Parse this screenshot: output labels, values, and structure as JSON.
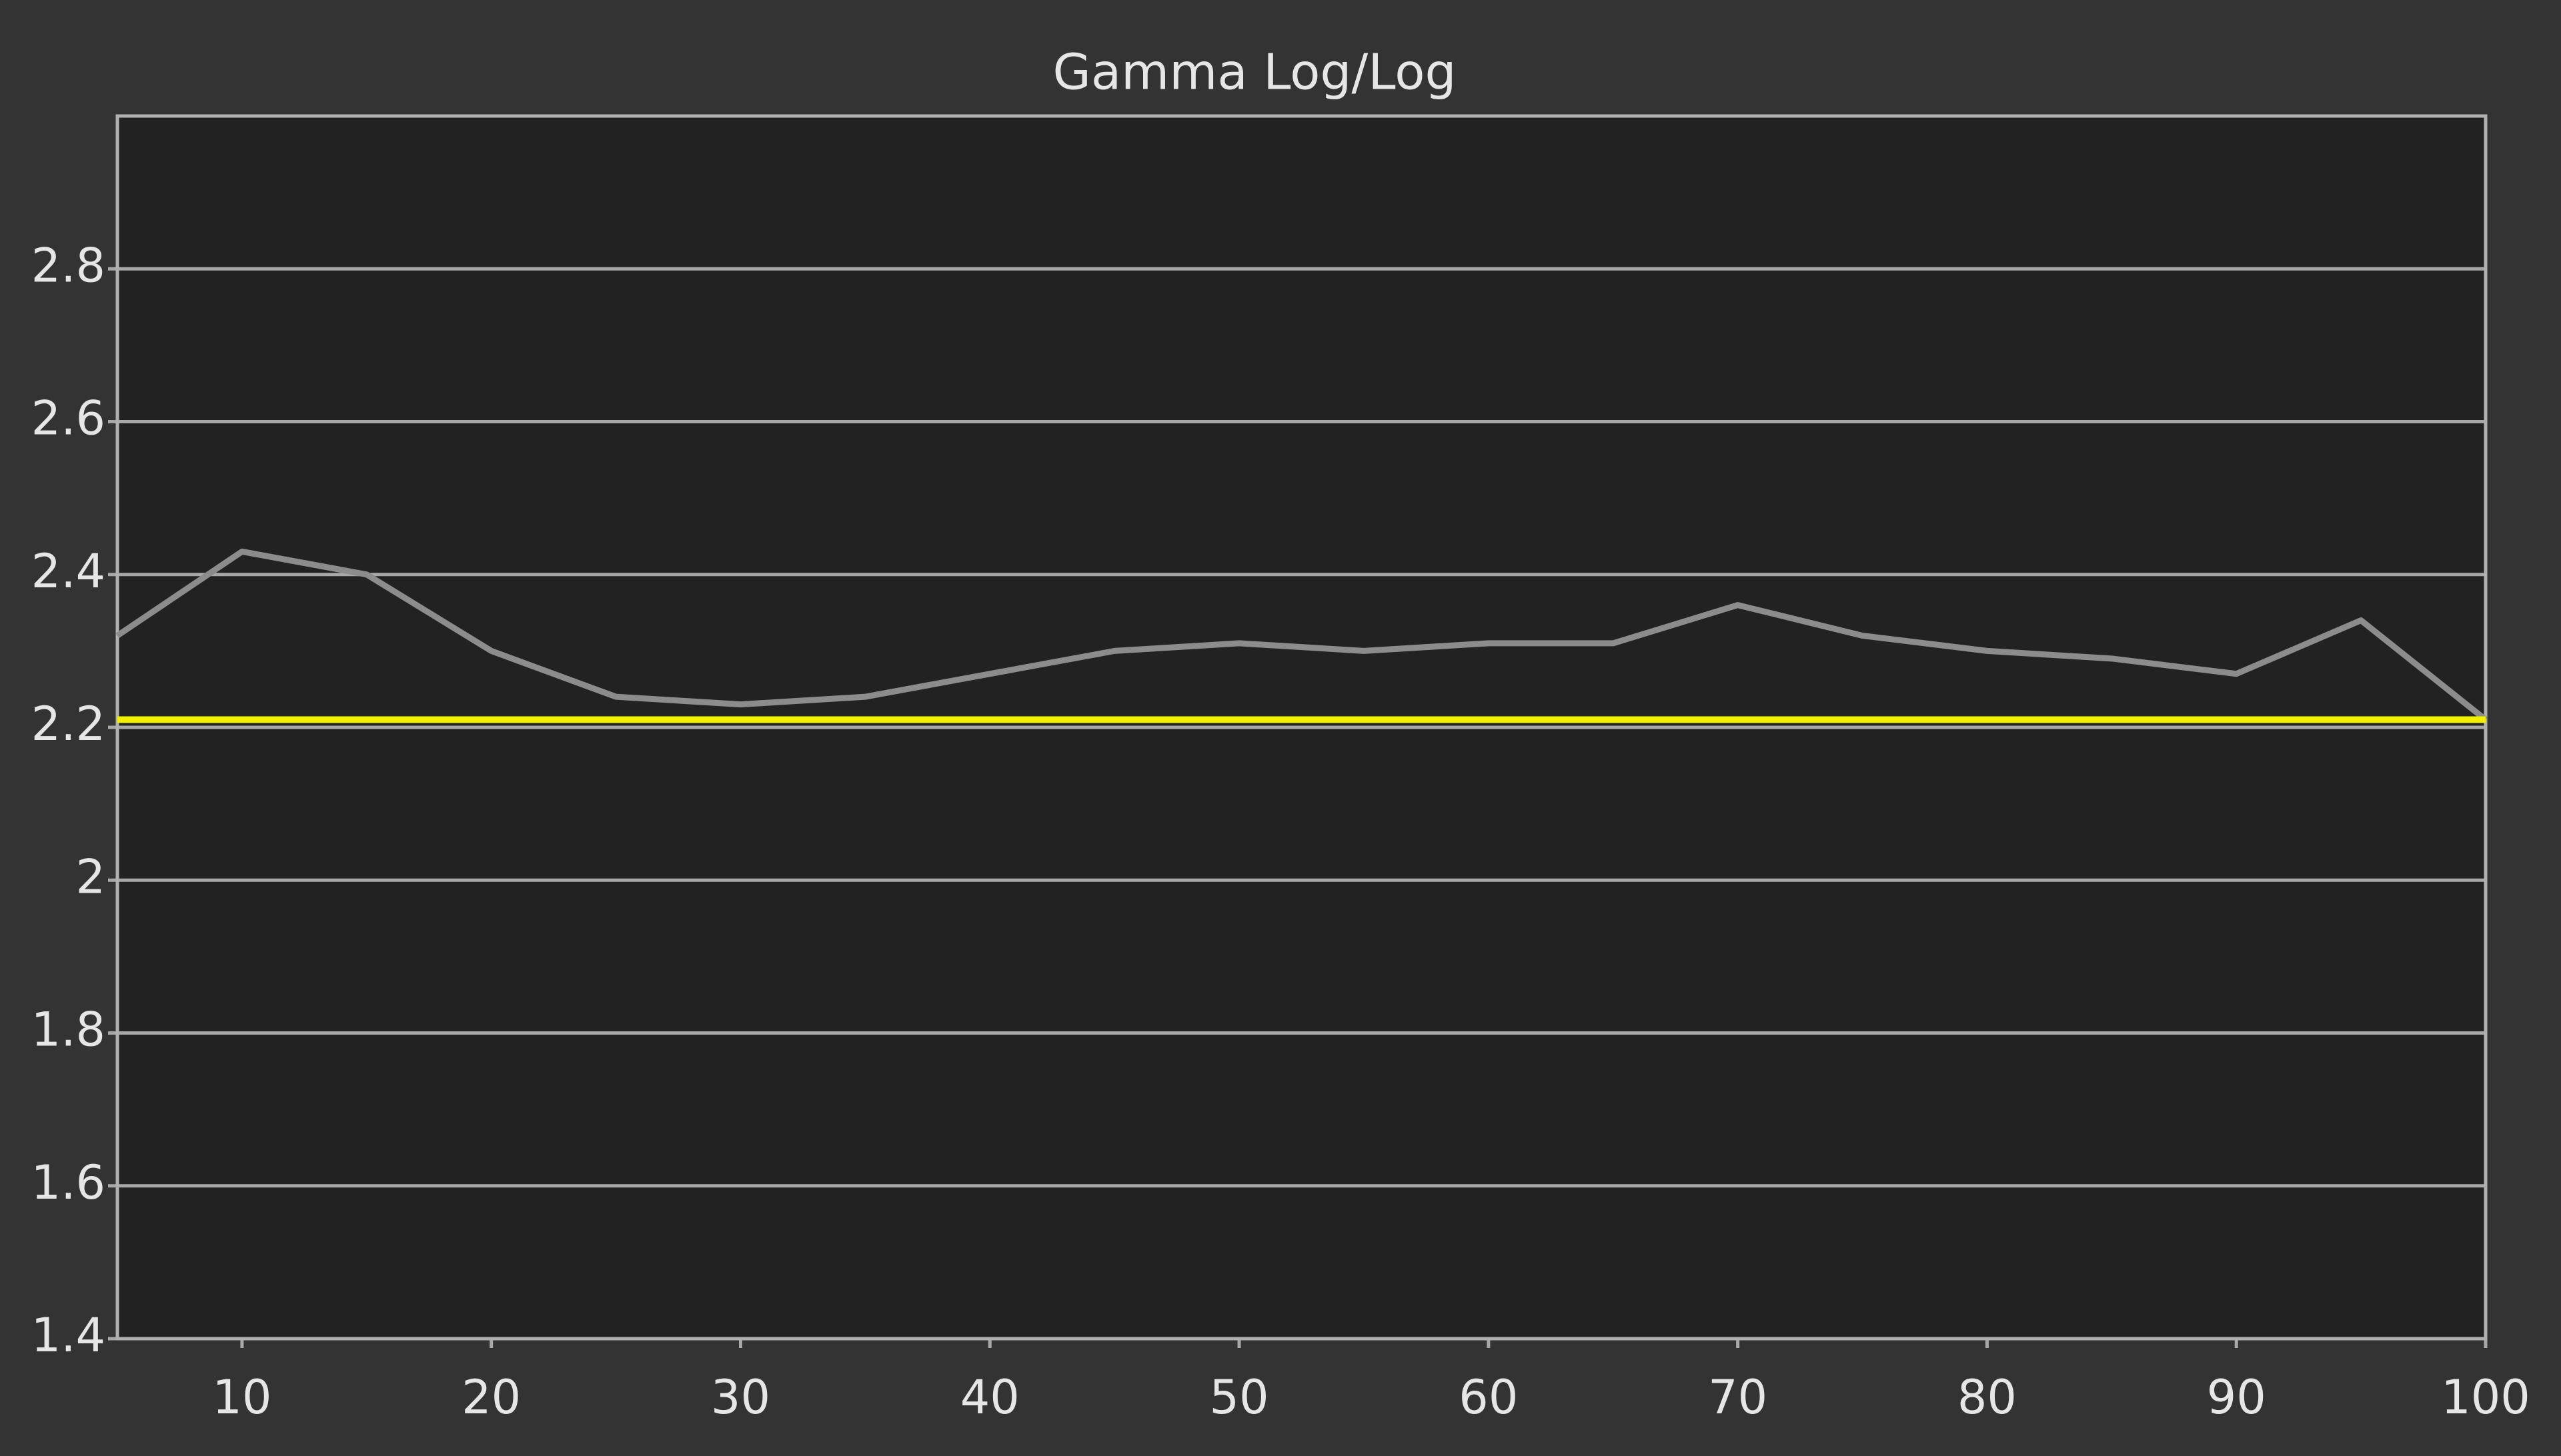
{
  "chart_data": {
    "type": "line",
    "title": "Gamma Log/Log",
    "x": [
      5,
      10,
      15,
      20,
      25,
      30,
      35,
      40,
      45,
      50,
      55,
      60,
      65,
      70,
      75,
      80,
      85,
      90,
      95,
      100
    ],
    "series": [
      {
        "color": "#8c8c8c",
        "values": [
          2.32,
          2.43,
          2.4,
          2.3,
          2.24,
          2.23,
          2.24,
          2.27,
          2.3,
          2.31,
          2.3,
          2.31,
          2.31,
          2.36,
          2.32,
          2.3,
          2.29,
          2.27,
          2.34,
          2.21
        ]
      },
      {
        "color": "#f0f000",
        "values": [
          2.21,
          2.21,
          2.21,
          2.21,
          2.21,
          2.21,
          2.21,
          2.21,
          2.21,
          2.21,
          2.21,
          2.21,
          2.21,
          2.21,
          2.21,
          2.21,
          2.21,
          2.21,
          2.21,
          2.21
        ]
      }
    ],
    "xlim": [
      5,
      100
    ],
    "xticks": [
      10,
      20,
      30,
      40,
      50,
      60,
      70,
      80,
      90,
      100
    ],
    "ylim": [
      1.4,
      3.0
    ],
    "yticks": [
      1.4,
      1.6,
      1.8,
      2,
      2.2,
      2.4,
      2.6,
      2.8
    ],
    "grid": true
  }
}
